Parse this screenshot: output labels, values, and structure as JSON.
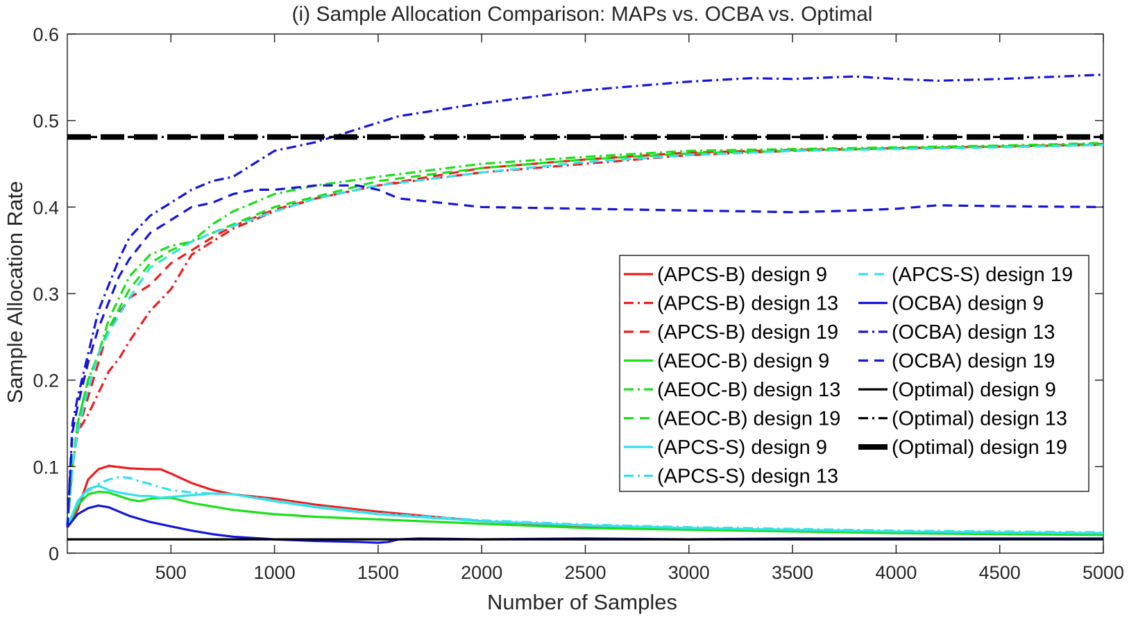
{
  "chart_data": {
    "type": "line",
    "title": "(i) Sample Allocation Comparison: MAPs vs. OCBA vs. Optimal",
    "xlabel": "Number of Samples",
    "ylabel": "Sample Allocation Rate",
    "xlim": [
      0,
      5000
    ],
    "ylim": [
      0,
      0.6
    ],
    "xticks": [
      500,
      1000,
      1500,
      2000,
      2500,
      3000,
      3500,
      4000,
      4500,
      5000
    ],
    "xtick_labels": [
      "500",
      "1000",
      "1500",
      "2000",
      "2500",
      "3000",
      "3500",
      "4000",
      "4500",
      "5000"
    ],
    "yticks": [
      0,
      0.1,
      0.2,
      0.3,
      0.4,
      0.5,
      0.6
    ],
    "ytick_labels": [
      "0",
      "0.1",
      "0.2",
      "0.3",
      "0.4",
      "0.5",
      "0.6"
    ],
    "grid": false,
    "legend_position": "right",
    "series": [
      {
        "name": "(APCS-B) design 9",
        "color": "#ee1c1c",
        "style": "solid",
        "x": [
          0,
          50,
          100,
          150,
          200,
          300,
          400,
          450,
          500,
          600,
          700,
          800,
          1000,
          1200,
          1500,
          2000,
          2500,
          3000,
          3500,
          4000,
          4500,
          5000
        ],
        "y": [
          0.03,
          0.05,
          0.085,
          0.097,
          0.101,
          0.098,
          0.097,
          0.097,
          0.092,
          0.081,
          0.073,
          0.068,
          0.063,
          0.056,
          0.048,
          0.037,
          0.031,
          0.028,
          0.026,
          0.024,
          0.023,
          0.022
        ]
      },
      {
        "name": "(APCS-B) design 13",
        "color": "#ee1c1c",
        "style": "dashdot",
        "x": [
          0,
          25,
          50,
          100,
          150,
          200,
          250,
          300,
          400,
          500,
          600,
          700,
          800,
          1000,
          1200,
          1500,
          2000,
          2500,
          3000,
          3500,
          4000,
          4500,
          5000
        ],
        "y": [
          0.03,
          0.1,
          0.14,
          0.16,
          0.185,
          0.21,
          0.225,
          0.245,
          0.28,
          0.305,
          0.345,
          0.36,
          0.375,
          0.395,
          0.41,
          0.425,
          0.44,
          0.45,
          0.46,
          0.465,
          0.468,
          0.47,
          0.473
        ]
      },
      {
        "name": "(APCS-B) design 19",
        "color": "#ee1c1c",
        "style": "dashed",
        "x": [
          0,
          25,
          50,
          100,
          150,
          200,
          300,
          400,
          500,
          600,
          700,
          800,
          1000,
          1200,
          1500,
          2000,
          2500,
          3000,
          3500,
          4000,
          4500,
          5000
        ],
        "y": [
          0.03,
          0.1,
          0.14,
          0.18,
          0.22,
          0.26,
          0.295,
          0.31,
          0.335,
          0.35,
          0.365,
          0.378,
          0.397,
          0.41,
          0.425,
          0.445,
          0.455,
          0.463,
          0.466,
          0.468,
          0.47,
          0.472
        ]
      },
      {
        "name": "(AEOC-B) design 9",
        "color": "#19e019",
        "style": "solid",
        "x": [
          0,
          50,
          100,
          150,
          200,
          250,
          300,
          350,
          400,
          500,
          600,
          700,
          800,
          1000,
          1200,
          1500,
          2000,
          2500,
          3000,
          3500,
          4000,
          4500,
          5000
        ],
        "y": [
          0.03,
          0.055,
          0.068,
          0.071,
          0.07,
          0.066,
          0.062,
          0.06,
          0.063,
          0.064,
          0.058,
          0.054,
          0.05,
          0.045,
          0.042,
          0.039,
          0.034,
          0.029,
          0.027,
          0.025,
          0.023,
          0.022,
          0.021
        ]
      },
      {
        "name": "(AEOC-B) design 13",
        "color": "#19e019",
        "style": "dashdot",
        "x": [
          0,
          25,
          50,
          100,
          150,
          200,
          250,
          300,
          400,
          500,
          600,
          700,
          800,
          1000,
          1200,
          1500,
          2000,
          2500,
          3000,
          3500,
          4000,
          4500,
          5000
        ],
        "y": [
          0.03,
          0.1,
          0.15,
          0.2,
          0.23,
          0.27,
          0.295,
          0.32,
          0.345,
          0.355,
          0.36,
          0.38,
          0.395,
          0.415,
          0.425,
          0.435,
          0.45,
          0.458,
          0.465,
          0.467,
          0.469,
          0.471,
          0.474
        ]
      },
      {
        "name": "(AEOC-B) design 19",
        "color": "#19e019",
        "style": "dashed",
        "x": [
          0,
          25,
          50,
          100,
          150,
          200,
          300,
          400,
          500,
          600,
          700,
          800,
          1000,
          1200,
          1500,
          2000,
          2500,
          3000,
          3500,
          4000,
          4500,
          5000
        ],
        "y": [
          0.03,
          0.1,
          0.15,
          0.2,
          0.23,
          0.26,
          0.305,
          0.335,
          0.35,
          0.36,
          0.37,
          0.38,
          0.4,
          0.412,
          0.43,
          0.445,
          0.455,
          0.462,
          0.465,
          0.468,
          0.47,
          0.472
        ]
      },
      {
        "name": "(APCS-S) design 9",
        "color": "#33e0ee",
        "style": "solid",
        "x": [
          0,
          50,
          100,
          150,
          200,
          250,
          300,
          350,
          400,
          450,
          500,
          600,
          700,
          800,
          1000,
          1200,
          1500,
          2000,
          2500,
          3000,
          3500,
          4000,
          4500,
          5000
        ],
        "y": [
          0.03,
          0.06,
          0.074,
          0.078,
          0.073,
          0.07,
          0.068,
          0.066,
          0.066,
          0.064,
          0.065,
          0.067,
          0.069,
          0.068,
          0.06,
          0.053,
          0.045,
          0.037,
          0.032,
          0.029,
          0.027,
          0.025,
          0.024,
          0.023
        ]
      },
      {
        "name": "(APCS-S) design 13",
        "color": "#33e0ee",
        "style": "dashdot",
        "x": [
          0,
          50,
          100,
          150,
          200,
          250,
          300,
          350,
          400,
          450,
          500,
          600,
          700,
          800,
          1000,
          1200,
          1500,
          2000,
          2500,
          3000,
          3500,
          4000,
          4500,
          5000
        ],
        "y": [
          0.03,
          0.058,
          0.072,
          0.08,
          0.085,
          0.088,
          0.087,
          0.083,
          0.08,
          0.076,
          0.073,
          0.07,
          0.069,
          0.068,
          0.061,
          0.054,
          0.046,
          0.038,
          0.033,
          0.03,
          0.028,
          0.026,
          0.025,
          0.024
        ]
      },
      {
        "name": "(APCS-S) design 19",
        "color": "#33e0ee",
        "style": "dashed",
        "x": [
          0,
          25,
          50,
          100,
          150,
          200,
          300,
          400,
          500,
          600,
          700,
          800,
          1000,
          1200,
          1500,
          2000,
          2500,
          3000,
          3500,
          4000,
          4500,
          5000
        ],
        "y": [
          0.03,
          0.1,
          0.14,
          0.19,
          0.23,
          0.255,
          0.295,
          0.33,
          0.345,
          0.36,
          0.37,
          0.378,
          0.395,
          0.41,
          0.425,
          0.44,
          0.452,
          0.46,
          0.465,
          0.467,
          0.469,
          0.472
        ]
      },
      {
        "name": "(OCBA) design 9",
        "color": "#1414dc",
        "style": "solid",
        "x": [
          0,
          50,
          100,
          150,
          200,
          250,
          300,
          400,
          500,
          600,
          700,
          800,
          1000,
          1200,
          1400,
          1500,
          1550,
          1600,
          1700,
          2000,
          2500,
          3000,
          3500,
          4000,
          4500,
          5000
        ],
        "y": [
          0.03,
          0.045,
          0.052,
          0.055,
          0.053,
          0.048,
          0.043,
          0.036,
          0.031,
          0.026,
          0.022,
          0.019,
          0.016,
          0.014,
          0.013,
          0.012,
          0.013,
          0.016,
          0.017,
          0.016,
          0.017,
          0.016,
          0.017,
          0.017,
          0.017,
          0.017
        ]
      },
      {
        "name": "(OCBA) design 13",
        "color": "#1414dc",
        "style": "dashdot",
        "x": [
          0,
          25,
          50,
          100,
          150,
          200,
          250,
          300,
          400,
          500,
          600,
          700,
          800,
          900,
          1000,
          1200,
          1400,
          1600,
          2000,
          2500,
          3000,
          3300,
          3500,
          3800,
          4000,
          4200,
          4500,
          5000
        ],
        "y": [
          0.03,
          0.15,
          0.18,
          0.23,
          0.28,
          0.31,
          0.34,
          0.365,
          0.39,
          0.405,
          0.42,
          0.43,
          0.435,
          0.45,
          0.465,
          0.475,
          0.49,
          0.505,
          0.52,
          0.535,
          0.545,
          0.549,
          0.548,
          0.551,
          0.548,
          0.546,
          0.548,
          0.553
        ]
      },
      {
        "name": "(OCBA) design 19",
        "color": "#1414dc",
        "style": "dashed",
        "x": [
          0,
          25,
          50,
          100,
          150,
          200,
          250,
          300,
          400,
          500,
          600,
          700,
          800,
          900,
          1000,
          1200,
          1400,
          1500,
          1600,
          1800,
          2000,
          2500,
          3000,
          3300,
          3500,
          3800,
          4000,
          4200,
          4500,
          5000
        ],
        "y": [
          0.03,
          0.14,
          0.17,
          0.22,
          0.26,
          0.29,
          0.32,
          0.34,
          0.37,
          0.385,
          0.4,
          0.405,
          0.415,
          0.42,
          0.42,
          0.425,
          0.425,
          0.42,
          0.41,
          0.405,
          0.4,
          0.398,
          0.396,
          0.395,
          0.394,
          0.396,
          0.398,
          0.402,
          0.401,
          0.4
        ]
      },
      {
        "name": "(Optimal) design 9",
        "color": "#000000",
        "style": "solid",
        "x": [
          0,
          5000
        ],
        "y": [
          0.016,
          0.016
        ]
      },
      {
        "name": "(Optimal) design 13",
        "color": "#000000",
        "style": "dashdot",
        "x": [
          0,
          5000
        ],
        "y": [
          0.481,
          0.481
        ]
      },
      {
        "name": "(Optimal) design 19",
        "color": "#000000",
        "style": "dashed-thick",
        "x": [
          0,
          5000
        ],
        "y": [
          0.481,
          0.481
        ]
      }
    ]
  }
}
